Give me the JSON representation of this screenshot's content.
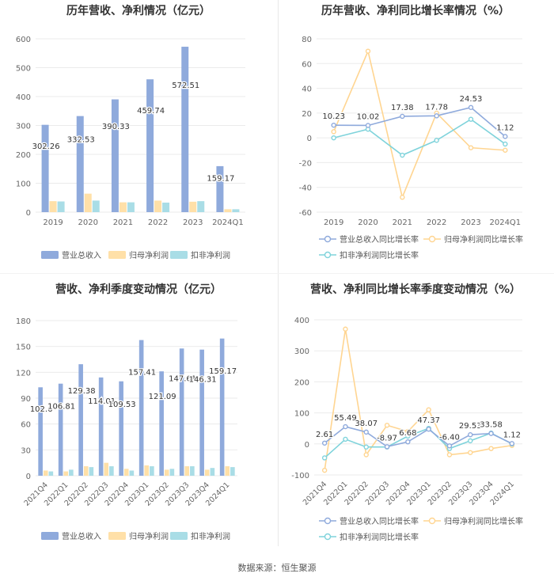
{
  "source": "数据来源：恒生聚源",
  "colors": {
    "revenue": "#8faadc",
    "net": "#ffe0a8",
    "deducted": "#a9dde6",
    "lrev": "#8faadc",
    "lnet": "#ffd591",
    "lded": "#7fd3db"
  },
  "chart_data": [
    {
      "type": "bar",
      "title": "历年营收、净利情况（亿元）",
      "categories": [
        "2019",
        "2020",
        "2021",
        "2022",
        "2023",
        "2024Q1"
      ],
      "ylim": [
        0,
        600
      ],
      "yticks": [
        0,
        100,
        200,
        300,
        400,
        500,
        600
      ],
      "series": [
        {
          "name": "营业总收入",
          "values": [
            302.26,
            332.53,
            390.33,
            459.74,
            572.51,
            159.17
          ],
          "labels": [
            "302.26",
            "332.53",
            "390.33",
            "459.74",
            "572.51",
            "159.17"
          ]
        },
        {
          "name": "归母净利润",
          "values": [
            38,
            64,
            34,
            40,
            36,
            10
          ]
        },
        {
          "name": "扣非净利润",
          "values": [
            37,
            40,
            34,
            33,
            38,
            10
          ]
        }
      ]
    },
    {
      "type": "line",
      "title": "历年营收、净利同比增长率情况（%）",
      "categories": [
        "2019",
        "2020",
        "2021",
        "2022",
        "2023",
        "2024Q1"
      ],
      "ylim": [
        -60,
        80
      ],
      "yticks": [
        -60,
        -40,
        -20,
        0,
        20,
        40,
        60,
        80
      ],
      "series": [
        {
          "name": "营业总收入同比增长率",
          "values": [
            10.23,
            10.02,
            17.38,
            17.78,
            24.53,
            1.12
          ],
          "labels": [
            "10.23",
            "10.02",
            "17.38",
            "17.78",
            "24.53",
            "1.12"
          ]
        },
        {
          "name": "归母净利润同比增长率",
          "values": [
            5,
            70,
            -48,
            20,
            -8,
            -10
          ]
        },
        {
          "name": "扣非净利润同比增长率",
          "values": [
            0,
            7,
            -14,
            -2,
            15,
            -5
          ]
        }
      ]
    },
    {
      "type": "bar",
      "title": "营收、净利季度变动情况（亿元）",
      "categories": [
        "2021Q4",
        "2022Q1",
        "2022Q2",
        "2022Q3",
        "2022Q4",
        "2023Q1",
        "2023Q2",
        "2023Q3",
        "2023Q4",
        "2024Q1"
      ],
      "ylim": [
        0,
        180
      ],
      "yticks": [
        0,
        30,
        60,
        90,
        120,
        150,
        180
      ],
      "series": [
        {
          "name": "营业总收入",
          "values": [
            102.6,
            106.81,
            129.38,
            114.01,
            109.53,
            157.41,
            121.09,
            147.61,
            146.31,
            159.17
          ],
          "labels": [
            "102.6",
            "106.81",
            "129.38",
            "114.01",
            "109.53",
            "157.41",
            "121.09",
            "147.61",
            "146.31",
            "159.17"
          ]
        },
        {
          "name": "归母净利润",
          "values": [
            6,
            5,
            11,
            15,
            8,
            12,
            7,
            11,
            7,
            11
          ]
        },
        {
          "name": "扣非净利润",
          "values": [
            5,
            7,
            10,
            11,
            6,
            11,
            8,
            11,
            9,
            10
          ]
        }
      ]
    },
    {
      "type": "line",
      "title": "营收、净利同比增长率季度变动情况（%）",
      "categories": [
        "2021Q4",
        "2022Q1",
        "2022Q2",
        "2022Q3",
        "2022Q4",
        "2023Q1",
        "2023Q2",
        "2023Q3",
        "2023Q4",
        "2024Q1"
      ],
      "ylim": [
        -100,
        400
      ],
      "yticks": [
        -100,
        0,
        100,
        200,
        300,
        400
      ],
      "series": [
        {
          "name": "营业总收入同比增长率",
          "values": [
            2.61,
            55.49,
            38.07,
            -8.97,
            6.68,
            47.37,
            -6.4,
            29.53,
            33.58,
            1.12
          ],
          "labels": [
            "2.61",
            "55.49",
            "38.07",
            "-8.97",
            "6.68",
            "47.37",
            "-6.40",
            "29.53",
            "33.58",
            "1.12"
          ]
        },
        {
          "name": "归母净利润同比增长率",
          "values": [
            -85,
            370,
            -35,
            60,
            40,
            110,
            -35,
            -28,
            -15,
            -5
          ]
        },
        {
          "name": "扣非净利润同比增长率",
          "values": [
            -45,
            15,
            -10,
            -10,
            25,
            50,
            -15,
            10,
            35,
            0
          ]
        }
      ]
    }
  ]
}
